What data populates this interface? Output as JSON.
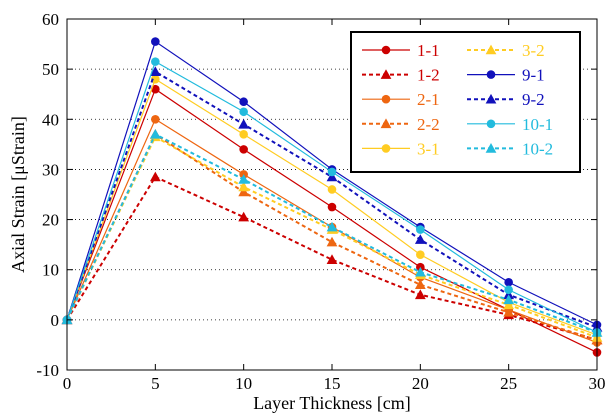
{
  "chart_data": {
    "type": "line",
    "title": "",
    "xlabel": "Layer Thickness [cm]",
    "ylabel": "Axial Strain [μStrain]",
    "xlim": [
      0,
      30
    ],
    "ylim": [
      -10,
      60
    ],
    "x_ticks": [
      "0",
      "5",
      "10",
      "15",
      "20",
      "25",
      "30"
    ],
    "y_ticks": [
      "-10",
      "0",
      "10",
      "20",
      "30",
      "40",
      "50",
      "60"
    ],
    "grid": "horizontal dotted",
    "legend_placement": "top-right",
    "x": [
      0,
      5,
      10,
      15,
      20,
      25,
      30
    ],
    "series": [
      {
        "name": "1-1",
        "color": "#cc0000",
        "dashed": false,
        "marker": "circle",
        "values": [
          0,
          46,
          34,
          22.5,
          10.5,
          2,
          -6.5
        ]
      },
      {
        "name": "1-2",
        "color": "#cc0000",
        "dashed": true,
        "marker": "triangle",
        "values": [
          0,
          28.5,
          20.5,
          12,
          5,
          1,
          -4
        ]
      },
      {
        "name": "2-1",
        "color": "#ee6611",
        "dashed": false,
        "marker": "circle",
        "values": [
          0,
          40,
          29,
          18.5,
          8.5,
          2,
          -4.5
        ]
      },
      {
        "name": "2-2",
        "color": "#ee6611",
        "dashed": true,
        "marker": "triangle",
        "values": [
          0,
          37,
          25.5,
          15.5,
          7,
          1.5,
          -4
        ]
      },
      {
        "name": "3-1",
        "color": "#ffcc22",
        "dashed": false,
        "marker": "circle",
        "values": [
          0,
          48,
          37,
          26,
          13,
          3.5,
          -3
        ]
      },
      {
        "name": "3-2",
        "color": "#ffcc22",
        "dashed": true,
        "marker": "triangle",
        "values": [
          0,
          36.5,
          26.5,
          18,
          9,
          3,
          -3.5
        ]
      },
      {
        "name": "9-1",
        "color": "#1111bb",
        "dashed": false,
        "marker": "circle",
        "values": [
          0,
          55.5,
          43.5,
          30,
          18.5,
          7.5,
          -1
        ]
      },
      {
        "name": "9-2",
        "color": "#1111bb",
        "dashed": true,
        "marker": "triangle",
        "values": [
          0,
          49.5,
          39,
          28.5,
          16,
          5,
          -1.5
        ]
      },
      {
        "name": "10-1",
        "color": "#22bbdd",
        "dashed": false,
        "marker": "circle",
        "values": [
          0,
          51.5,
          41.5,
          29.5,
          18,
          6,
          -2.5
        ]
      },
      {
        "name": "10-2",
        "color": "#22bbdd",
        "dashed": true,
        "marker": "triangle",
        "values": [
          0,
          37,
          28,
          18.5,
          9.5,
          4,
          -2.5
        ]
      }
    ]
  }
}
